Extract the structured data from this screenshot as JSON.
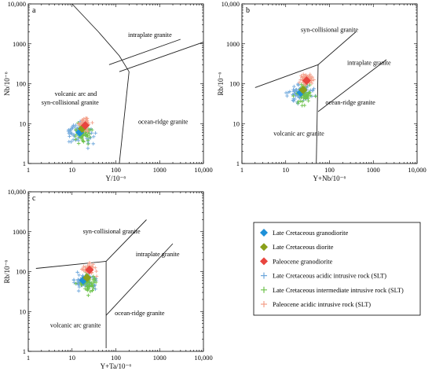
{
  "chart_data": [
    {
      "panel": "a",
      "type": "scatter",
      "xlabel": "Y/10⁻⁶",
      "ylabel": "Nb/10⁻⁶",
      "xscale": "log",
      "yscale": "log",
      "xlim": [
        1,
        10000
      ],
      "ylim": [
        1,
        10000
      ],
      "xticks": [
        "1",
        "10",
        "100",
        "1000",
        "10,000"
      ],
      "yticks": [
        "1",
        "10",
        "100",
        "1000",
        "10,000"
      ],
      "field_labels": [
        "intraplate granite",
        "volcanic arc and",
        "syn-collisional granite",
        "ocean-ridge granite"
      ],
      "boundaries": [
        [
          [
            10,
            10000
          ],
          [
            40,
            2000
          ],
          [
            120,
            500
          ],
          [
            200,
            200
          ],
          [
            120,
            1
          ]
        ],
        [
          [
            70,
            300
          ],
          [
            3000,
            1300
          ]
        ],
        [
          [
            120,
            200
          ],
          [
            10000,
            1100
          ]
        ]
      ],
      "centroids": [
        {
          "series": "Late Cretaceous granodiorite",
          "x": 15,
          "y": 6
        },
        {
          "series": "Late Cretaceous diorite",
          "x": 17,
          "y": 7.5
        },
        {
          "series": "Paleocene granodiorite",
          "x": 20,
          "y": 9
        }
      ]
    },
    {
      "panel": "b",
      "type": "scatter",
      "xlabel": "Y+Nb/10⁻⁶",
      "ylabel": "Rb/10⁻⁶",
      "xscale": "log",
      "yscale": "log",
      "xlim": [
        1,
        10000
      ],
      "ylim": [
        1,
        10000
      ],
      "xticks": [
        "1",
        "10",
        "100",
        "1000",
        "10,000"
      ],
      "yticks": [
        "1",
        "10",
        "100",
        "1000",
        "10,000"
      ],
      "field_labels": [
        "syn-collisional granite",
        "intraplate granite",
        "volcanic arc granite",
        "ocean-ridge granite"
      ],
      "boundaries": [
        [
          [
            2,
            80
          ],
          [
            55,
            300
          ],
          [
            400,
            2000
          ]
        ],
        [
          [
            55,
            300
          ],
          [
            50,
            1
          ]
        ],
        [
          [
            55,
            20
          ],
          [
            2000,
            400
          ]
        ]
      ],
      "centroids": [
        {
          "series": "Late Cretaceous granodiorite",
          "x": 22,
          "y": 60
        },
        {
          "series": "Late Cretaceous diorite",
          "x": 25,
          "y": 70
        },
        {
          "series": "Paleocene granodiorite",
          "x": 30,
          "y": 120
        }
      ]
    },
    {
      "panel": "c",
      "type": "scatter",
      "xlabel": "Y+Ta/10⁻⁶",
      "ylabel": "Rb/10⁻⁶",
      "xscale": "log",
      "yscale": "log",
      "xlim": [
        1,
        10000
      ],
      "ylim": [
        1,
        10000
      ],
      "xticks": [
        "1",
        "10",
        "100",
        "1000",
        "10,000"
      ],
      "yticks": [
        "1",
        "10",
        "100",
        "1000",
        "10,000"
      ],
      "field_labels": [
        "syn-collisional granite",
        "intraplate granite",
        "volcanic arc granite",
        "ocean-ridge granite"
      ],
      "boundaries": [
        [
          [
            1.5,
            120
          ],
          [
            60,
            180
          ],
          [
            500,
            2000
          ]
        ],
        [
          [
            60,
            180
          ],
          [
            60,
            1.2
          ]
        ],
        [
          [
            60,
            8
          ],
          [
            2000,
            500
          ]
        ]
      ],
      "centroids": [
        {
          "series": "Late Cretaceous granodiorite",
          "x": 18,
          "y": 60
        },
        {
          "series": "Late Cretaceous diorite",
          "x": 22,
          "y": 70
        },
        {
          "series": "Paleocene granodiorite",
          "x": 25,
          "y": 110
        }
      ]
    }
  ],
  "legend": [
    {
      "label": "Late Cretaceous granodiorite",
      "marker": "diamond",
      "color": "#1E90D8"
    },
    {
      "label": "Late Cretaceous diorite",
      "marker": "diamond",
      "color": "#8AA01A"
    },
    {
      "label": "Paleocene granodiorite",
      "marker": "diamond",
      "color": "#E8453F"
    },
    {
      "label": "Late Cretaceous acidic intrusive rock (SLT)",
      "marker": "cross",
      "color": "#6FA8DC"
    },
    {
      "label": "Late Cretaceous intermediate intrusive rock (SLT)",
      "marker": "cross",
      "color": "#6DC24B"
    },
    {
      "label": "Paleocene acidic intrusive rock (SLT)",
      "marker": "cross",
      "color": "#F4A08A"
    }
  ]
}
